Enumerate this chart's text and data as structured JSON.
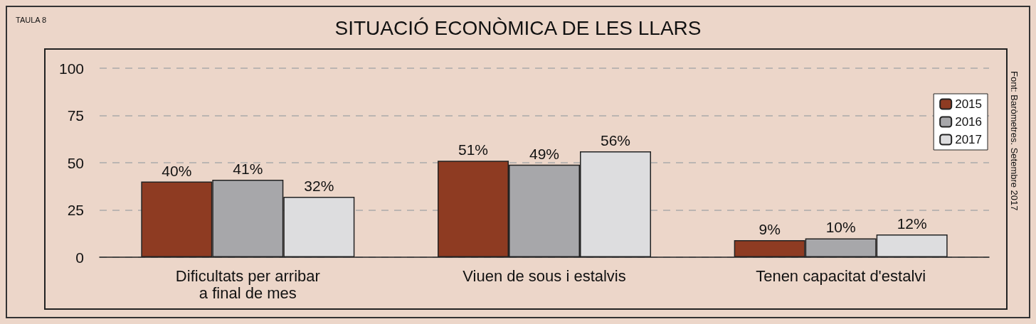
{
  "chart_data": {
    "type": "bar",
    "title": "SITUACIÓ ECONÒMICA DE LES LLARS",
    "categories": [
      "Dificultats per arribar\na final de mes",
      "Viuen de sous i estalvis",
      "Tenen capacitat d'estalvi"
    ],
    "series": [
      {
        "name": "2015",
        "color": "#8e3b22",
        "values": [
          40,
          51,
          9
        ],
        "value_labels": [
          "40%",
          "51%",
          "9%"
        ]
      },
      {
        "name": "2016",
        "color": "#a7a7aa",
        "values": [
          41,
          49,
          10
        ],
        "value_labels": [
          "41%",
          "49%",
          "10%"
        ]
      },
      {
        "name": "2017",
        "color": "#dddddf",
        "values": [
          32,
          56,
          12
        ],
        "value_labels": [
          "32%",
          "56%",
          "12%"
        ]
      }
    ],
    "ylim": [
      0,
      100
    ],
    "yticks": [
      0,
      25,
      50,
      75,
      100
    ],
    "grid": "y",
    "legend": "top right",
    "annotations": [
      "TAULA 8",
      "Font: Baròmetres. Setembre 2017"
    ]
  }
}
